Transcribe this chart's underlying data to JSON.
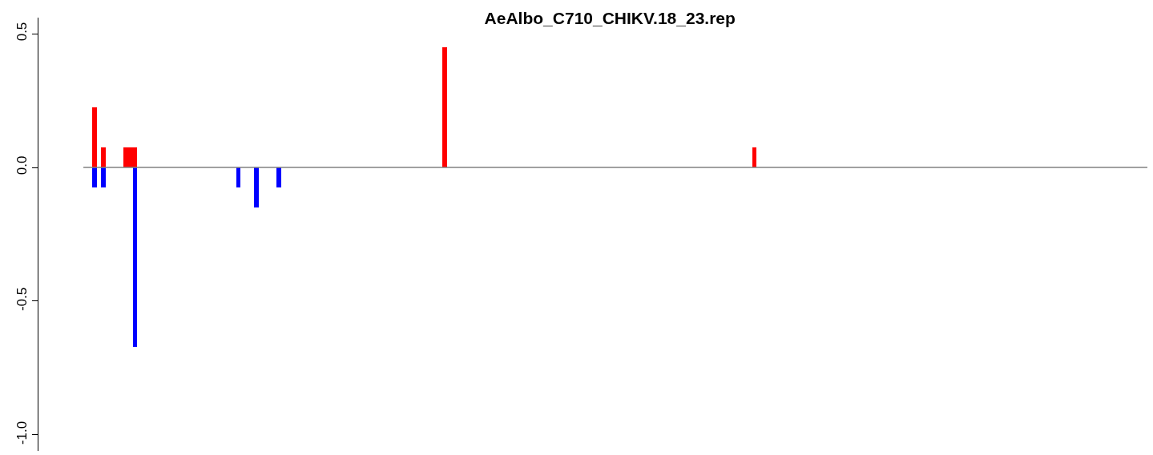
{
  "chart_data": {
    "type": "bar",
    "title": "AeAlbo_C710_CHIKV.18_23.rep",
    "tick_labels": "y",
    "categories": [
      null,
      null,
      null,
      null,
      null,
      null,
      null,
      null,
      null,
      null,
      null,
      null,
      null,
      null,
      null,
      null,
      null,
      null,
      null,
      null,
      null,
      null,
      null,
      null,
      null,
      null,
      null,
      null,
      null,
      null,
      null,
      null,
      null,
      null,
      null,
      null,
      null,
      null,
      null,
      null,
      null,
      null,
      null,
      null,
      null,
      null,
      null,
      null,
      null,
      null,
      null,
      null,
      null,
      null,
      null,
      null,
      null,
      null,
      null,
      null,
      null,
      null,
      null,
      null,
      null,
      null,
      null,
      null,
      null,
      null,
      null,
      null,
      null,
      null,
      null,
      null,
      null,
      null,
      null,
      null,
      null,
      null,
      null,
      null,
      null,
      null,
      null,
      null,
      null,
      null,
      null,
      null,
      null,
      null,
      null,
      null,
      null,
      null,
      null,
      null,
      null,
      null,
      null,
      null,
      null,
      null,
      null,
      null,
      null,
      null,
      null,
      null,
      null,
      null,
      null,
      null,
      null,
      null,
      null,
      null,
      null,
      null,
      null,
      null,
      null,
      null,
      null,
      null,
      null,
      null,
      null,
      null,
      null,
      null,
      null,
      null,
      null,
      null,
      null,
      null,
      null,
      null,
      null,
      null,
      null,
      null,
      null,
      null,
      null,
      null,
      null,
      null,
      null,
      null,
      null,
      null,
      null,
      null,
      null,
      null,
      null,
      null,
      null,
      null,
      null,
      null,
      null,
      null,
      null,
      null,
      null,
      null,
      null,
      null,
      null,
      null,
      null,
      null,
      null,
      null,
      null,
      null,
      null,
      null,
      null,
      null,
      null,
      null,
      null,
      null,
      null,
      null,
      null,
      null,
      null,
      null,
      null,
      null,
      null,
      null,
      null,
      null,
      null,
      null,
      null,
      null,
      null,
      null,
      null,
      null,
      null,
      null,
      null,
      null,
      null,
      null,
      null,
      null,
      null,
      null,
      null,
      null,
      null,
      null,
      null,
      null,
      null,
      null,
      null,
      null,
      null,
      null,
      null,
      null,
      null,
      null,
      null
    ],
    "series": [
      {
        "color": "#ff0000",
        "values": [
          null,
          null,
          0.225,
          null,
          0.075,
          null,
          null,
          null,
          null,
          0.075,
          0.075,
          0.075,
          null,
          null,
          null,
          null,
          null,
          null,
          null,
          null,
          null,
          null,
          null,
          null,
          null,
          null,
          null,
          null,
          null,
          null,
          null,
          null,
          null,
          null,
          null,
          null,
          null,
          null,
          null,
          null,
          null,
          null,
          null,
          null,
          null,
          null,
          null,
          null,
          null,
          null,
          null,
          null,
          null,
          null,
          null,
          null,
          null,
          null,
          null,
          null,
          null,
          null,
          null,
          null,
          null,
          null,
          null,
          null,
          null,
          null,
          null,
          null,
          null,
          null,
          null,
          null,
          null,
          null,
          null,
          null,
          0.45,
          null,
          null,
          null,
          null,
          null,
          null,
          null,
          null,
          null,
          null,
          null,
          null,
          null,
          null,
          null,
          null,
          null,
          null,
          null,
          null,
          null,
          null,
          null,
          null,
          null,
          null,
          null,
          null,
          null,
          null,
          null,
          null,
          null,
          null,
          null,
          null,
          null,
          null,
          null,
          null,
          null,
          null,
          null,
          null,
          null,
          null,
          null,
          null,
          null,
          null,
          null,
          null,
          null,
          null,
          null,
          null,
          null,
          null,
          null,
          null,
          null,
          null,
          null,
          null,
          null,
          null,
          null,
          null,
          0.075,
          null,
          null,
          null,
          null,
          null,
          null,
          null,
          null,
          null,
          null,
          null,
          null,
          null,
          null,
          null,
          null,
          null,
          null,
          null,
          null,
          null,
          null,
          null,
          null,
          null,
          null,
          null,
          null,
          null,
          null,
          null,
          null,
          null,
          null,
          null,
          null,
          null,
          null,
          null,
          null,
          null,
          null,
          null,
          null,
          null,
          null,
          null,
          null,
          null,
          null,
          null,
          null,
          null,
          null,
          null,
          null,
          null,
          null,
          null,
          null,
          null,
          null,
          null,
          null,
          null,
          null,
          null,
          null,
          null,
          null,
          null,
          null,
          null,
          null,
          null,
          null,
          null,
          null,
          null,
          null,
          null,
          null,
          null,
          null,
          null,
          null,
          null
        ]
      },
      {
        "color": "#0000ff",
        "values": [
          null,
          null,
          -0.075,
          null,
          -0.075,
          null,
          null,
          null,
          null,
          null,
          null,
          -0.67,
          null,
          null,
          null,
          null,
          null,
          null,
          null,
          null,
          null,
          null,
          null,
          null,
          null,
          null,
          null,
          null,
          null,
          null,
          null,
          null,
          null,
          null,
          -0.075,
          null,
          null,
          null,
          -0.15,
          null,
          null,
          null,
          null,
          -0.075,
          null,
          null,
          null,
          null,
          null,
          null,
          null,
          null,
          null,
          null,
          null,
          null,
          null,
          null,
          null,
          null,
          null,
          null,
          null,
          null,
          null,
          null,
          null,
          null,
          null,
          null,
          null,
          null,
          null,
          null,
          null,
          null,
          null,
          null,
          null,
          null,
          null,
          null,
          null,
          null,
          null,
          null,
          null,
          null,
          null,
          null,
          null,
          null,
          null,
          null,
          null,
          null,
          null,
          null,
          null,
          null,
          null,
          null,
          null,
          null,
          null,
          null,
          null,
          null,
          null,
          null,
          null,
          null,
          null,
          null,
          null,
          null,
          null,
          null,
          null,
          null,
          null,
          null,
          null,
          null,
          null,
          null,
          null,
          null,
          null,
          null,
          null,
          null,
          null,
          null,
          null,
          null,
          null,
          null,
          null,
          null,
          null,
          null,
          null,
          null,
          null,
          null,
          null,
          null,
          null,
          null,
          null,
          null,
          null,
          null,
          null,
          null,
          null,
          null,
          null,
          null,
          null,
          null,
          null,
          null,
          null,
          null,
          null,
          null,
          null,
          null,
          null,
          null,
          null,
          null,
          null,
          null,
          null,
          null,
          null,
          null,
          null,
          null,
          null,
          null,
          null,
          null,
          null,
          null,
          null,
          null,
          null,
          null,
          null,
          null,
          null,
          null,
          null,
          null,
          null,
          null,
          null,
          null,
          null,
          null,
          null,
          null,
          null,
          null,
          null,
          null,
          null,
          null,
          null,
          null,
          null,
          null,
          null,
          null,
          null,
          null,
          null,
          null,
          null,
          null,
          null,
          null,
          null,
          null,
          null,
          null,
          null,
          null,
          null,
          null,
          null,
          null,
          null
        ]
      }
    ],
    "ylim": [
      -1.06,
      0.56
    ],
    "yticks": [
      {
        "value": -1,
        "label": "-1.0"
      },
      {
        "value": -0.5,
        "label": "-0.5"
      },
      {
        "value": 0,
        "label": "0.0"
      },
      {
        "value": 0.5,
        "label": "0.5"
      }
    ],
    "ref_lines": [
      {
        "axis": "y",
        "value": 0,
        "color": "#808080"
      }
    ]
  }
}
